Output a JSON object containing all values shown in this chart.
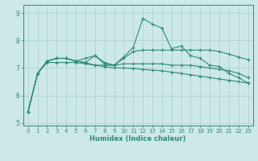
{
  "x": [
    0,
    1,
    2,
    3,
    4,
    5,
    6,
    7,
    8,
    9,
    10,
    11,
    12,
    13,
    14,
    15,
    16,
    17,
    18,
    19,
    20,
    21,
    22,
    23
  ],
  "line1": [
    5.4,
    6.8,
    7.25,
    7.35,
    7.35,
    7.25,
    7.2,
    7.45,
    7.15,
    7.1,
    7.4,
    7.75,
    8.8,
    8.6,
    8.45,
    7.7,
    7.8,
    7.45,
    7.35,
    7.1,
    7.05,
    6.8,
    6.65,
    6.45
  ],
  "line2": [
    5.4,
    6.8,
    7.25,
    7.35,
    7.35,
    7.25,
    7.35,
    7.45,
    7.2,
    7.1,
    7.35,
    7.6,
    7.65,
    7.65,
    7.65,
    7.65,
    7.65,
    7.65,
    7.65,
    7.65,
    7.6,
    7.5,
    7.4,
    7.3
  ],
  "line3": [
    5.4,
    6.8,
    7.25,
    7.35,
    7.35,
    7.25,
    7.2,
    7.1,
    7.1,
    7.1,
    7.15,
    7.15,
    7.15,
    7.15,
    7.15,
    7.1,
    7.1,
    7.1,
    7.05,
    7.0,
    6.95,
    6.9,
    6.8,
    6.65
  ],
  "line4": [
    5.4,
    6.8,
    7.2,
    7.2,
    7.2,
    7.2,
    7.15,
    7.1,
    7.05,
    7.0,
    7.0,
    6.98,
    6.95,
    6.92,
    6.9,
    6.85,
    6.8,
    6.75,
    6.7,
    6.65,
    6.6,
    6.55,
    6.5,
    6.45
  ],
  "xlabel": "Humidex (Indice chaleur)",
  "xlim": [
    -0.5,
    23.5
  ],
  "ylim": [
    4.9,
    9.3
  ],
  "yticks": [
    5,
    6,
    7,
    8,
    9
  ],
  "xticks": [
    0,
    1,
    2,
    3,
    4,
    5,
    6,
    7,
    8,
    9,
    10,
    11,
    12,
    13,
    14,
    15,
    16,
    17,
    18,
    19,
    20,
    21,
    22,
    23
  ],
  "line_color": "#2e8b74",
  "bg_color": "#cde8e8",
  "grid_color": "#aacece",
  "marker": "+",
  "markersize": 3.5,
  "markeredgewidth": 0.8,
  "linewidth": 0.8,
  "tick_fontsize": 5.0,
  "xlabel_fontsize": 6.0
}
